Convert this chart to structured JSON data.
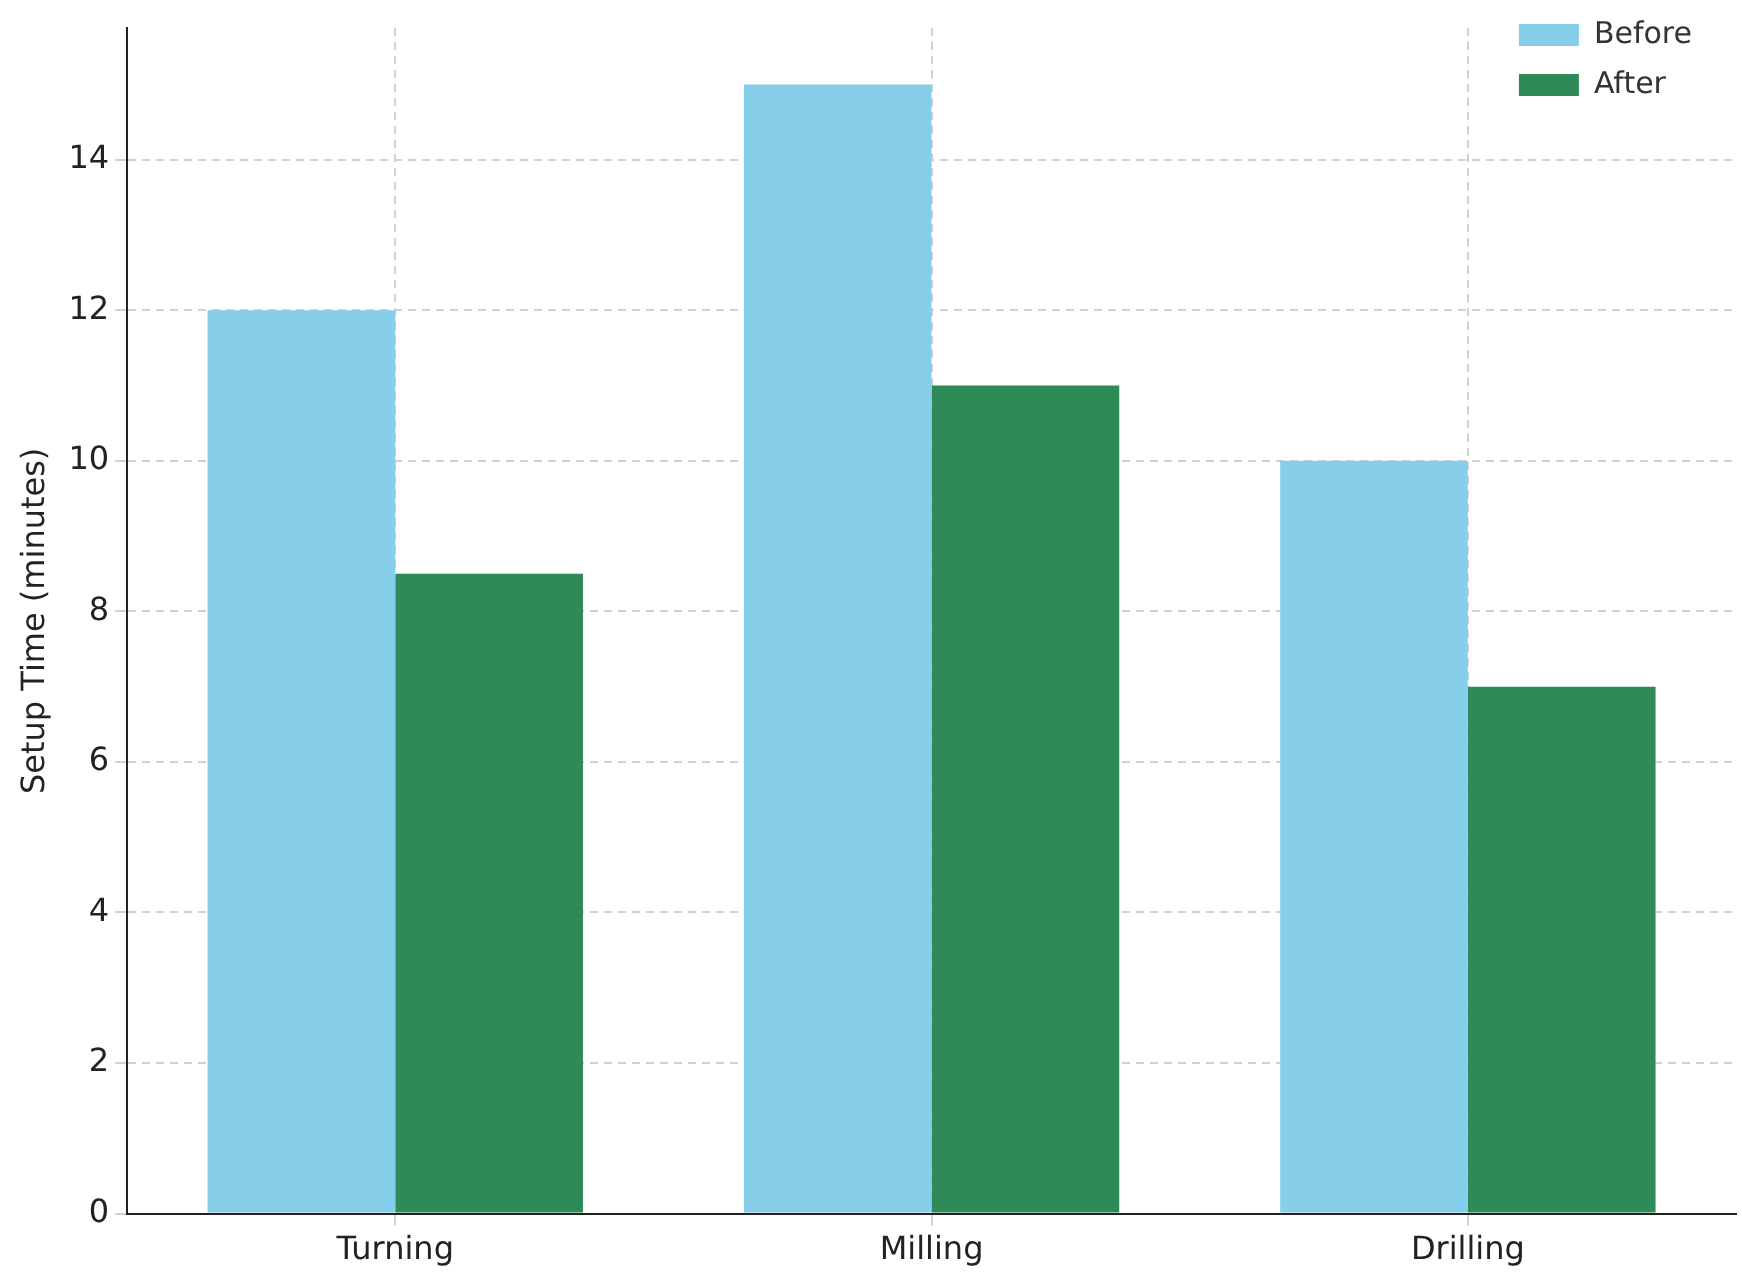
{
  "chart_data": {
    "type": "bar",
    "ylabel": "Setup Time (minutes)",
    "categories": [
      "Turning",
      "Milling",
      "Drilling"
    ],
    "series": [
      {
        "name": "Before",
        "color": "#87ceeb",
        "values": [
          12,
          15,
          10
        ]
      },
      {
        "name": "After",
        "color": "#2e8b57",
        "values": [
          8.5,
          11,
          7
        ]
      }
    ],
    "ylim": [
      0,
      15.75
    ],
    "yticks": [
      0,
      2,
      4,
      6,
      8,
      10,
      12,
      14
    ],
    "grid": true,
    "legend": "top right"
  }
}
